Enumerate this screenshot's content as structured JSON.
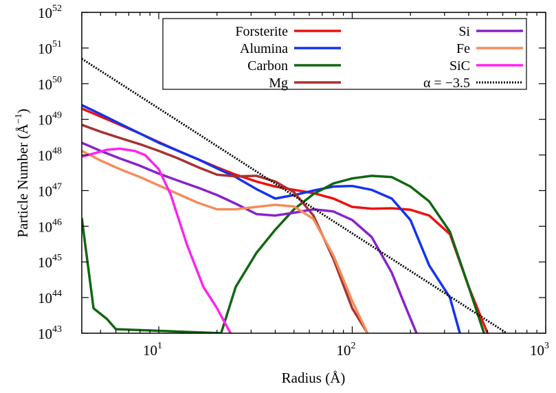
{
  "chart_data": {
    "type": "line",
    "title": "",
    "xlabel": "Radius (Å)",
    "ylabel": "Particle Number  (Å",
    "ylabel_exponent": "−1",
    "ylabel_suffix": ")",
    "x_scale": "log",
    "y_scale": "log",
    "xlim": [
      4,
      1000
    ],
    "ylim": [
      1e+43,
      1e+52
    ],
    "x_ticks": [
      {
        "base": "10",
        "exp": "1",
        "value": 10
      },
      {
        "base": "10",
        "exp": "2",
        "value": 100
      },
      {
        "base": "10",
        "exp": "3",
        "value": 1000
      }
    ],
    "y_ticks": [
      {
        "base": "10",
        "exp": "43",
        "value": 1e+43
      },
      {
        "base": "10",
        "exp": "44",
        "value": 1e+44
      },
      {
        "base": "10",
        "exp": "45",
        "value": 1e+45
      },
      {
        "base": "10",
        "exp": "46",
        "value": 1e+46
      },
      {
        "base": "10",
        "exp": "47",
        "value": 1e+47
      },
      {
        "base": "10",
        "exp": "48",
        "value": 1e+48
      },
      {
        "base": "10",
        "exp": "49",
        "value": 1e+49
      },
      {
        "base": "10",
        "exp": "50",
        "value": 1e+50
      },
      {
        "base": "10",
        "exp": "51",
        "value": 1e+51
      },
      {
        "base": "10",
        "exp": "52",
        "value": 1e+52
      }
    ],
    "grid": false,
    "legend_position": "top-right",
    "series": [
      {
        "name": "Forsterite",
        "color": "#ee1111",
        "dash": "solid",
        "x": [
          4,
          5,
          6.3,
          8,
          10,
          12.6,
          16,
          20,
          25,
          32,
          40,
          50,
          63,
          80,
          100,
          126,
          160,
          200,
          250,
          320,
          400,
          500
        ],
        "y": [
          2e+49,
          1.2e+49,
          7e+48,
          4e+48,
          2.3e+48,
          1.3e+48,
          7.5e+47,
          4.5e+47,
          2.8e+47,
          1.8e+47,
          1.3e+47,
          1.05e+47,
          8.5e+46,
          6e+46,
          3.5e+46,
          3.1e+46,
          3.2e+46,
          2.9e+46,
          2e+46,
          6e+45,
          2e+44,
          1e+43
        ]
      },
      {
        "name": "Alumina",
        "color": "#1133ee",
        "dash": "solid",
        "x": [
          4,
          5,
          6.3,
          8,
          10,
          12.6,
          16,
          20,
          25,
          32,
          40,
          50,
          63,
          80,
          100,
          126,
          160,
          200,
          250,
          320,
          360
        ],
        "y": [
          2.5e+49,
          1.4e+49,
          7.5e+48,
          4e+48,
          2.2e+48,
          1.3e+48,
          7.5e+47,
          4.2e+47,
          2.4e+47,
          1.1e+47,
          6e+46,
          7.5e+46,
          1e+47,
          1.3e+47,
          1.35e+47,
          1.05e+47,
          6e+46,
          1.5e+46,
          8e+44,
          1e+44,
          1e+43
        ]
      },
      {
        "name": "Carbon",
        "color": "#116611",
        "dash": "solid",
        "x": [
          4,
          4.6,
          5.4,
          6.0,
          21,
          25,
          32,
          40,
          50,
          63,
          80,
          100,
          126,
          160,
          200,
          250,
          320,
          400,
          480
        ],
        "y": [
          1.7e+46,
          5e+43,
          2.5e+43,
          1.3e+43,
          1e+43,
          2e+44,
          1.8e+45,
          8e+45,
          3e+46,
          8e+46,
          1.6e+47,
          2.2e+47,
          2.6e+47,
          2.4e+47,
          1.3e+47,
          5e+46,
          7e+45,
          2e+44,
          1e+43
        ]
      },
      {
        "name": "Mg",
        "color": "#a83232",
        "dash": "solid",
        "x": [
          4,
          5,
          6.3,
          8,
          10,
          12.6,
          16,
          20,
          25,
          32,
          40,
          50,
          63,
          80,
          100,
          120
        ],
        "y": [
          7e+48,
          4.5e+48,
          3e+48,
          2e+48,
          1.3e+48,
          8e+47,
          4.5e+47,
          2.8e+47,
          2.5e+47,
          2.6e+47,
          1.8e+47,
          9e+46,
          2e+46,
          1.2e+45,
          5e+43,
          1e+43
        ]
      },
      {
        "name": "Si",
        "color": "#8822cc",
        "dash": "solid",
        "x": [
          4,
          5,
          6.3,
          8,
          10,
          12.6,
          16,
          20,
          25,
          32,
          40,
          50,
          63,
          80,
          100,
          126,
          160,
          190,
          215
        ],
        "y": [
          2.2e+48,
          1.3e+48,
          8e+47,
          5e+47,
          3e+47,
          1.9e+47,
          1.2e+47,
          7.5e+46,
          4.3e+46,
          2.2e+46,
          2e+46,
          2.4e+46,
          3e+46,
          2.6e+46,
          1.5e+46,
          5e+45,
          5e+44,
          5e+43,
          1e+43
        ]
      },
      {
        "name": "Fe",
        "color": "#f58c5a",
        "dash": "solid",
        "x": [
          4,
          5,
          6.3,
          8,
          10,
          12.6,
          16,
          20,
          25,
          32,
          40,
          50,
          63,
          80,
          100,
          120
        ],
        "y": [
          1.3e+48,
          7e+47,
          4e+47,
          2.4e+47,
          1.4e+47,
          8e+46,
          4.5e+46,
          3e+46,
          3e+46,
          3.5e+46,
          4e+46,
          3.6e+46,
          1.6e+46,
          1.5e+45,
          8e+43,
          1e+43
        ]
      },
      {
        "name": "SiC",
        "color": "#ff22ee",
        "dash": "solid",
        "x": [
          4,
          4.6,
          5.4,
          6.3,
          7.5,
          8.5,
          10,
          11.5,
          14,
          17,
          20,
          23.5
        ],
        "y": [
          9e+47,
          1.1e+48,
          1.4e+48,
          1.5e+48,
          1.3e+48,
          1e+48,
          4e+47,
          8e+46,
          3e+45,
          2e+44,
          5e+43,
          1e+43
        ]
      },
      {
        "name": "α = −3.5",
        "color": "#000000",
        "dash": "dotted",
        "x": [
          4,
          630
        ],
        "y": [
          5e+50,
          1e+43
        ]
      }
    ]
  }
}
